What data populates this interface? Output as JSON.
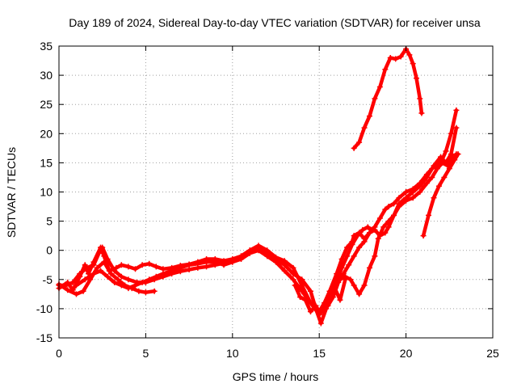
{
  "chart_data": {
    "type": "line",
    "title": "Day 189 of 2024, Sidereal Day-to-day VTEC variation (SDTVAR) for receiver unsa",
    "xlabel": "GPS time / hours",
    "ylabel": "SDTVAR / TECUs",
    "xlim": [
      0,
      25
    ],
    "ylim": [
      -15,
      35
    ],
    "xticks": [
      0,
      5,
      10,
      15,
      20,
      25
    ],
    "yticks": [
      -15,
      -10,
      -5,
      0,
      5,
      10,
      15,
      20,
      25,
      30,
      35
    ],
    "grid": true,
    "marker": "plus",
    "color": "#ff0000",
    "series": [
      {
        "name": "trace-1",
        "points": [
          [
            0.0,
            -6.5
          ],
          [
            0.5,
            -5.5
          ],
          [
            0.8,
            -6.8
          ],
          [
            1.2,
            -4.5
          ],
          [
            1.5,
            -2.5
          ],
          [
            1.7,
            -4.0
          ],
          [
            2.0,
            -2.0
          ],
          [
            2.4,
            0.5
          ],
          [
            2.6,
            -1.0
          ],
          [
            2.9,
            -3.5
          ],
          [
            3.3,
            -3.0
          ],
          [
            3.6,
            -2.5
          ],
          [
            4.0,
            -2.8
          ],
          [
            4.4,
            -3.2
          ],
          [
            4.8,
            -2.5
          ],
          [
            5.2,
            -2.3
          ],
          [
            5.6,
            -2.8
          ],
          [
            6.0,
            -3.2
          ],
          [
            6.5,
            -3.0
          ],
          [
            7.0,
            -2.6
          ],
          [
            7.5,
            -2.4
          ],
          [
            8.0,
            -2.0
          ],
          [
            8.5,
            -1.5
          ],
          [
            9.0,
            -1.5
          ],
          [
            9.5,
            -1.8
          ],
          [
            10.0,
            -1.5
          ],
          [
            10.5,
            -1.0
          ],
          [
            11.0,
            0.0
          ],
          [
            11.5,
            0.8
          ],
          [
            12.0,
            0.0
          ],
          [
            12.5,
            -1.2
          ],
          [
            13.0,
            -1.8
          ],
          [
            13.5,
            -3.0
          ],
          [
            14.0,
            -6.0
          ],
          [
            14.5,
            -9.0
          ],
          [
            15.0,
            -11.0
          ],
          [
            15.3,
            -10.0
          ],
          [
            15.6,
            -7.0
          ],
          [
            16.0,
            -4.0
          ],
          [
            16.3,
            -1.5
          ],
          [
            16.6,
            0.5
          ],
          [
            16.9,
            1.5
          ],
          [
            17.0,
            2.5
          ],
          [
            17.3,
            3.0
          ],
          [
            17.6,
            2.0
          ],
          [
            17.9,
            3.0
          ],
          [
            18.2,
            4.0
          ],
          [
            18.5,
            5.5
          ],
          [
            18.8,
            7.0
          ],
          [
            19.0,
            7.5
          ],
          [
            19.3,
            8.0
          ],
          [
            19.6,
            9.0
          ],
          [
            20.0,
            10.0
          ],
          [
            20.4,
            10.5
          ],
          [
            20.8,
            11.5
          ],
          [
            21.2,
            13.0
          ],
          [
            21.5,
            14.0
          ],
          [
            22.0,
            15.0
          ],
          [
            22.3,
            17.0
          ],
          [
            22.6,
            20.0
          ],
          [
            22.9,
            24.0
          ]
        ]
      },
      {
        "name": "trace-2",
        "points": [
          [
            0.0,
            -6.0
          ],
          [
            0.4,
            -6.0
          ],
          [
            0.8,
            -5.5
          ],
          [
            1.2,
            -4.0
          ],
          [
            1.6,
            -3.0
          ],
          [
            2.0,
            -2.5
          ],
          [
            2.3,
            -0.5
          ],
          [
            2.5,
            0.5
          ],
          [
            2.8,
            -1.5
          ],
          [
            3.2,
            -3.5
          ],
          [
            3.6,
            -4.5
          ],
          [
            4.0,
            -5.0
          ],
          [
            4.5,
            -5.5
          ],
          [
            5.0,
            -5.5
          ],
          [
            5.5,
            -5.0
          ],
          [
            6.0,
            -4.5
          ],
          [
            6.5,
            -4.0
          ],
          [
            7.0,
            -3.6
          ],
          [
            7.5,
            -3.3
          ],
          [
            8.0,
            -3.0
          ],
          [
            8.5,
            -2.8
          ],
          [
            9.0,
            -2.5
          ],
          [
            9.5,
            -2.2
          ],
          [
            10.0,
            -2.0
          ],
          [
            10.5,
            -1.0
          ],
          [
            11.0,
            0.0
          ],
          [
            11.5,
            0.5
          ],
          [
            12.0,
            -0.5
          ],
          [
            12.5,
            -1.5
          ],
          [
            13.0,
            -2.5
          ],
          [
            13.5,
            -4.0
          ],
          [
            14.0,
            -5.0
          ],
          [
            14.5,
            -7.0
          ],
          [
            14.8,
            -10.0
          ],
          [
            15.1,
            -12.5
          ],
          [
            15.4,
            -10.0
          ],
          [
            15.7,
            -8.0
          ],
          [
            16.0,
            -5.5
          ],
          [
            16.3,
            -3.0
          ],
          [
            16.6,
            -1.0
          ],
          [
            16.9,
            1.0
          ],
          [
            17.2,
            2.5
          ],
          [
            17.5,
            3.5
          ],
          [
            17.8,
            4.0
          ],
          [
            18.0,
            3.5
          ]
        ]
      },
      {
        "name": "trace-3",
        "points": [
          [
            0.0,
            -5.8
          ],
          [
            0.5,
            -6.8
          ],
          [
            1.0,
            -7.5
          ],
          [
            1.4,
            -7.0
          ],
          [
            1.8,
            -5.0
          ],
          [
            2.2,
            -3.0
          ],
          [
            2.6,
            -2.0
          ],
          [
            3.0,
            -4.0
          ],
          [
            3.4,
            -5.0
          ],
          [
            3.8,
            -6.0
          ],
          [
            4.2,
            -6.5
          ],
          [
            4.6,
            -7.0
          ],
          [
            5.0,
            -7.2
          ],
          [
            5.5,
            -7.0
          ]
        ]
      },
      {
        "name": "trace-4",
        "points": [
          [
            1.0,
            -6.0
          ],
          [
            1.5,
            -5.0
          ],
          [
            2.0,
            -4.0
          ],
          [
            2.4,
            -3.5
          ],
          [
            2.8,
            -4.5
          ],
          [
            3.2,
            -5.5
          ],
          [
            3.6,
            -6.0
          ],
          [
            4.0,
            -6.5
          ],
          [
            4.4,
            -6.0
          ],
          [
            4.8,
            -5.5
          ],
          [
            5.2,
            -5.0
          ],
          [
            5.6,
            -4.5
          ],
          [
            6.0,
            -4.0
          ],
          [
            6.5,
            -3.5
          ],
          [
            7.0,
            -3.0
          ],
          [
            7.5,
            -2.5
          ],
          [
            8.0,
            -2.3
          ],
          [
            8.5,
            -2.0
          ],
          [
            9.0,
            -2.0
          ],
          [
            9.5,
            -2.5
          ],
          [
            10.0,
            -2.0
          ],
          [
            10.5,
            -1.5
          ],
          [
            11.0,
            -0.5
          ],
          [
            11.5,
            0.0
          ],
          [
            12.0,
            -1.0
          ],
          [
            12.5,
            -2.0
          ],
          [
            13.0,
            -3.5
          ],
          [
            13.5,
            -5.0
          ],
          [
            14.0,
            -7.0
          ],
          [
            14.5,
            -9.0
          ],
          [
            15.0,
            -11.0
          ],
          [
            15.3,
            -9.5
          ],
          [
            15.6,
            -7.5
          ],
          [
            15.9,
            -6.0
          ],
          [
            16.2,
            -5.0
          ],
          [
            16.5,
            -4.5
          ],
          [
            16.8,
            -5.0
          ],
          [
            17.0,
            -6.0
          ],
          [
            17.3,
            -7.5
          ],
          [
            17.6,
            -6.0
          ],
          [
            17.9,
            -3.0
          ],
          [
            18.2,
            -1.0
          ],
          [
            18.4,
            2.0
          ],
          [
            18.7,
            4.0
          ],
          [
            19.0,
            5.0
          ],
          [
            19.3,
            6.0
          ],
          [
            19.6,
            7.5
          ],
          [
            20.0,
            8.5
          ],
          [
            20.4,
            9.0
          ],
          [
            20.8,
            10.0
          ],
          [
            21.2,
            11.5
          ],
          [
            21.5,
            12.5
          ],
          [
            21.8,
            14.0
          ],
          [
            22.1,
            15.0
          ],
          [
            22.4,
            14.5
          ],
          [
            22.7,
            16.0
          ],
          [
            22.9,
            16.5
          ]
        ]
      },
      {
        "name": "trace-5",
        "points": [
          [
            15.5,
            -9.5
          ],
          [
            15.8,
            -8.0
          ],
          [
            16.1,
            -5.5
          ],
          [
            16.4,
            -4.0
          ],
          [
            16.7,
            -2.5
          ],
          [
            17.0,
            -1.0
          ],
          [
            17.3,
            0.5
          ],
          [
            17.6,
            1.5
          ],
          [
            17.9,
            3.0
          ],
          [
            18.2,
            3.5
          ],
          [
            18.5,
            2.5
          ],
          [
            18.8,
            3.0
          ],
          [
            19.0,
            4.0
          ],
          [
            19.3,
            6.0
          ],
          [
            19.6,
            8.0
          ],
          [
            20.0,
            9.0
          ],
          [
            20.4,
            10.0
          ],
          [
            20.8,
            11.0
          ],
          [
            21.2,
            12.5
          ],
          [
            21.6,
            14.5
          ],
          [
            22.0,
            16.0
          ],
          [
            22.3,
            15.0
          ],
          [
            22.6,
            16.5
          ],
          [
            22.9,
            21.0
          ]
        ]
      },
      {
        "name": "trace-6",
        "points": [
          [
            17.0,
            17.5
          ],
          [
            17.3,
            18.5
          ],
          [
            17.6,
            21.0
          ],
          [
            17.9,
            23.0
          ],
          [
            18.2,
            26.0
          ],
          [
            18.5,
            28.0
          ],
          [
            18.8,
            31.0
          ],
          [
            19.1,
            33.0
          ],
          [
            19.4,
            32.8
          ],
          [
            19.7,
            33.2
          ],
          [
            20.0,
            34.5
          ],
          [
            20.2,
            33.5
          ],
          [
            20.4,
            32.0
          ],
          [
            20.6,
            29.5
          ],
          [
            20.8,
            26.0
          ],
          [
            20.9,
            23.5
          ]
        ]
      },
      {
        "name": "trace-7",
        "points": [
          [
            21.0,
            2.5
          ],
          [
            21.3,
            6.0
          ],
          [
            21.6,
            9.0
          ],
          [
            21.9,
            11.0
          ],
          [
            22.2,
            12.5
          ],
          [
            22.5,
            14.0
          ],
          [
            22.8,
            15.5
          ],
          [
            23.0,
            16.5
          ]
        ]
      },
      {
        "name": "trace-8",
        "points": [
          [
            13.6,
            -6.0
          ],
          [
            13.9,
            -8.0
          ],
          [
            14.2,
            -8.5
          ],
          [
            14.5,
            -10.5
          ],
          [
            14.8,
            -9.5
          ],
          [
            15.0,
            -10.5
          ],
          [
            15.3,
            -9.0
          ],
          [
            15.6,
            -7.0
          ],
          [
            15.9,
            -6.5
          ],
          [
            16.2,
            -8.5
          ],
          [
            16.5,
            -5.0
          ]
        ]
      }
    ]
  }
}
